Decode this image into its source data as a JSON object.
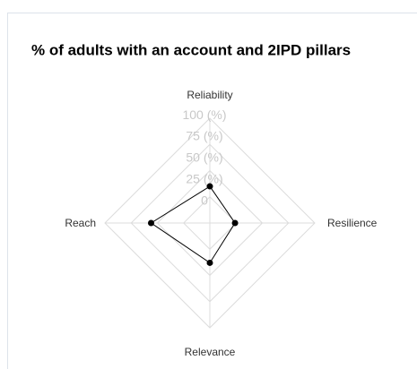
{
  "chart_data": {
    "type": "radar",
    "title": "% of adults with an account and 2IPD pillars",
    "categories": [
      "Reliability",
      "Resilience",
      "Relevance",
      "Reach"
    ],
    "values": [
      35,
      24,
      38,
      56
    ],
    "color": "#000000",
    "grid": true,
    "ylim": [
      0,
      100
    ],
    "yticks": [
      0,
      {
        "value": 25,
        "label": "25 (%)"
      },
      {
        "value": 50,
        "label": "50 (%)"
      },
      {
        "value": 75,
        "label": "75 (%)"
      },
      {
        "value": 100,
        "label": "100 (%)"
      }
    ]
  }
}
